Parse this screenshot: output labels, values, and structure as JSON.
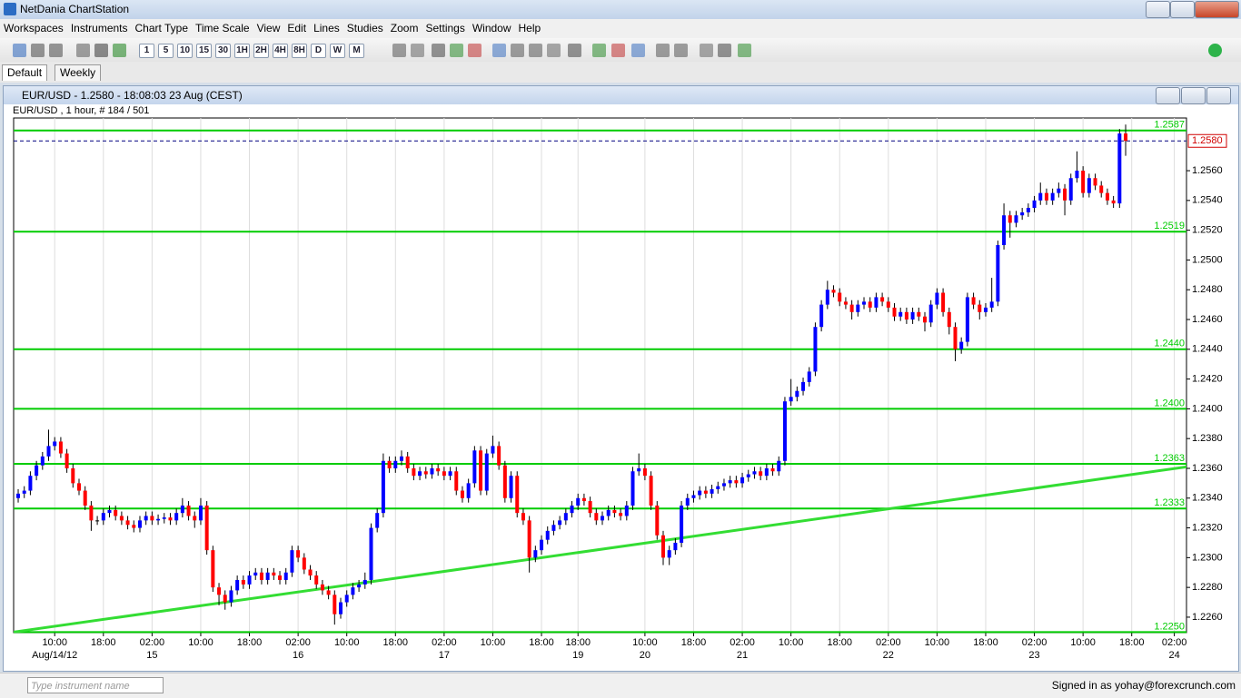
{
  "app": {
    "title": "NetDania ChartStation",
    "menu": [
      "Workspaces",
      "Instruments",
      "Chart Type",
      "Time Scale",
      "View",
      "Edit",
      "Lines",
      "Studies",
      "Zoom",
      "Settings",
      "Window",
      "Help"
    ],
    "periods": [
      "1",
      "5",
      "10",
      "15",
      "30",
      "1H",
      "2H",
      "4H",
      "8H",
      "D",
      "W",
      "M"
    ],
    "tabs": [
      "Default",
      "Weekly"
    ],
    "window_title": "EUR/USD - 1.2580 - 18:08:03  23 Aug (CEST)",
    "search_placeholder": "Type instrument name",
    "status": "Signed in as yohay@forexcrunch.com"
  },
  "chart_data": {
    "type": "candlestick",
    "title": "EUR/USD , 1 hour, # 184 / 501",
    "xlim": [
      -0.75,
      192
    ],
    "ylim": [
      1.22496,
      1.25954
    ],
    "yticks": [
      {
        "value": 1.226,
        "label": "1.2260"
      },
      {
        "value": 1.228,
        "label": "1.2280"
      },
      {
        "value": 1.23,
        "label": "1.2300"
      },
      {
        "value": 1.232,
        "label": "1.2320"
      },
      {
        "value": 1.234,
        "label": "1.2340"
      },
      {
        "value": 1.236,
        "label": "1.2360"
      },
      {
        "value": 1.238,
        "label": "1.2380"
      },
      {
        "value": 1.24,
        "label": "1.2400"
      },
      {
        "value": 1.242,
        "label": "1.2420"
      },
      {
        "value": 1.244,
        "label": "1.2440"
      },
      {
        "value": 1.246,
        "label": "1.2460"
      },
      {
        "value": 1.248,
        "label": "1.2480"
      },
      {
        "value": 1.25,
        "label": "1.2500"
      },
      {
        "value": 1.252,
        "label": "1.2520"
      },
      {
        "value": 1.254,
        "label": "1.2540"
      },
      {
        "value": 1.256,
        "label": "1.2560"
      }
    ],
    "xticks": [
      {
        "value": 6,
        "label": "10:00"
      },
      {
        "value": 14,
        "label": "18:00"
      },
      {
        "value": 22,
        "label": "02:00"
      },
      {
        "value": 30,
        "label": "10:00"
      },
      {
        "value": 38,
        "label": "18:00"
      },
      {
        "value": 46,
        "label": "02:00"
      },
      {
        "value": 54,
        "label": "10:00"
      },
      {
        "value": 62,
        "label": "18:00"
      },
      {
        "value": 70,
        "label": "02:00"
      },
      {
        "value": 78,
        "label": "10:00"
      },
      {
        "value": 86,
        "label": "18:00"
      },
      {
        "value": 92,
        "label": "18:00"
      },
      {
        "value": 103,
        "label": "10:00"
      },
      {
        "value": 111,
        "label": "18:00"
      },
      {
        "value": 119,
        "label": "02:00"
      },
      {
        "value": 127,
        "label": "10:00"
      },
      {
        "value": 135,
        "label": "18:00"
      },
      {
        "value": 143,
        "label": "02:00"
      },
      {
        "value": 151,
        "label": "10:00"
      },
      {
        "value": 159,
        "label": "18:00"
      },
      {
        "value": 167,
        "label": "02:00"
      },
      {
        "value": 175,
        "label": "10:00"
      },
      {
        "value": 183,
        "label": "18:00"
      },
      {
        "value": 190,
        "label": "02:00"
      }
    ],
    "date_ticks": [
      {
        "value": 6,
        "label": "Aug/14/12"
      },
      {
        "value": 22,
        "label": "15"
      },
      {
        "value": 46,
        "label": "16"
      },
      {
        "value": 70,
        "label": "17"
      },
      {
        "value": 92,
        "label": "19"
      },
      {
        "value": 103,
        "label": "20"
      },
      {
        "value": 119,
        "label": "21"
      },
      {
        "value": 143,
        "label": "22"
      },
      {
        "value": 167,
        "label": "23"
      },
      {
        "value": 190,
        "label": "24"
      }
    ],
    "levels": [
      {
        "value": 1.2587,
        "label": "1.2587"
      },
      {
        "value": 1.2519,
        "label": "1.2519"
      },
      {
        "value": 1.244,
        "label": "1.2440"
      },
      {
        "value": 1.24,
        "label": "1.2400"
      },
      {
        "value": 1.2363,
        "label": "1.2363"
      },
      {
        "value": 1.2333,
        "label": "1.2333"
      },
      {
        "value": 1.225,
        "label": "1.2250"
      }
    ],
    "last_price": {
      "value": 1.258,
      "label": "1.2580"
    },
    "trend_line": {
      "x": [
        -0.75,
        192
      ],
      "y": [
        1.225,
        1.2361
      ]
    },
    "up_color": "#0000ff",
    "down_color": "#ff0000",
    "level_color": "#00cc00",
    "candles": [
      [
        1.234,
        1.2346,
        1.2337,
        1.2343
      ],
      [
        1.2343,
        1.2348,
        1.234,
        1.2345
      ],
      [
        1.2345,
        1.2358,
        1.2342,
        1.2355
      ],
      [
        1.2355,
        1.2365,
        1.2352,
        1.2362
      ],
      [
        1.2362,
        1.2371,
        1.2359,
        1.2368
      ],
      [
        1.2368,
        1.2386,
        1.2365,
        1.2375
      ],
      [
        1.2375,
        1.2381,
        1.2372,
        1.2378
      ],
      [
        1.2378,
        1.2381,
        1.2367,
        1.237
      ],
      [
        1.237,
        1.2373,
        1.2357,
        1.236
      ],
      [
        1.236,
        1.2363,
        1.2347,
        1.235
      ],
      [
        1.235,
        1.2353,
        1.2342,
        1.2345
      ],
      [
        1.2345,
        1.2348,
        1.2332,
        1.2335
      ],
      [
        1.2335,
        1.2338,
        1.2318,
        1.2325
      ],
      [
        1.2325,
        1.2328,
        1.2322,
        1.2325
      ],
      [
        1.2325,
        1.2333,
        1.2322,
        1.233
      ],
      [
        1.233,
        1.2335,
        1.2327,
        1.2332
      ],
      [
        1.2332,
        1.2335,
        1.2325,
        1.2328
      ],
      [
        1.2328,
        1.2331,
        1.2322,
        1.2325
      ],
      [
        1.2325,
        1.2328,
        1.2319,
        1.2322
      ],
      [
        1.2322,
        1.2325,
        1.2317,
        1.232
      ],
      [
        1.232,
        1.2328,
        1.2317,
        1.2325
      ],
      [
        1.2325,
        1.2331,
        1.2322,
        1.2328
      ],
      [
        1.2328,
        1.2331,
        1.2322,
        1.2325
      ],
      [
        1.2325,
        1.2329,
        1.2322,
        1.2326
      ],
      [
        1.2326,
        1.233,
        1.2323,
        1.2327
      ],
      [
        1.2327,
        1.233,
        1.2322,
        1.2325
      ],
      [
        1.2325,
        1.2333,
        1.2322,
        1.233
      ],
      [
        1.233,
        1.234,
        1.2327,
        1.2335
      ],
      [
        1.2335,
        1.2338,
        1.2325,
        1.2328
      ],
      [
        1.2328,
        1.2331,
        1.232,
        1.2325
      ],
      [
        1.2325,
        1.234,
        1.2322,
        1.2335
      ],
      [
        1.2335,
        1.2338,
        1.2302,
        1.2305
      ],
      [
        1.2305,
        1.2308,
        1.2277,
        1.228
      ],
      [
        1.228,
        1.2283,
        1.2268,
        1.2275
      ],
      [
        1.2275,
        1.2278,
        1.2265,
        1.227
      ],
      [
        1.227,
        1.2281,
        1.2267,
        1.2278
      ],
      [
        1.2278,
        1.2288,
        1.2275,
        1.2285
      ],
      [
        1.2285,
        1.2288,
        1.2279,
        1.2282
      ],
      [
        1.2282,
        1.2291,
        1.2279,
        1.2288
      ],
      [
        1.2288,
        1.2293,
        1.2285,
        1.229
      ],
      [
        1.229,
        1.2293,
        1.2282,
        1.2285
      ],
      [
        1.2285,
        1.2293,
        1.2282,
        1.229
      ],
      [
        1.229,
        1.2293,
        1.2285,
        1.2288
      ],
      [
        1.2288,
        1.2291,
        1.2282,
        1.2285
      ],
      [
        1.2285,
        1.2293,
        1.2282,
        1.229
      ],
      [
        1.229,
        1.2308,
        1.2287,
        1.2305
      ],
      [
        1.2305,
        1.2308,
        1.2297,
        1.23
      ],
      [
        1.23,
        1.2303,
        1.2289,
        1.2292
      ],
      [
        1.2292,
        1.2295,
        1.2285,
        1.2288
      ],
      [
        1.2288,
        1.2291,
        1.2279,
        1.2282
      ],
      [
        1.2282,
        1.2285,
        1.2275,
        1.2278
      ],
      [
        1.2278,
        1.2281,
        1.2272,
        1.2275
      ],
      [
        1.2275,
        1.2278,
        1.2255,
        1.2262
      ],
      [
        1.2262,
        1.2273,
        1.2259,
        1.227
      ],
      [
        1.227,
        1.2278,
        1.2267,
        1.2275
      ],
      [
        1.2275,
        1.2283,
        1.2272,
        1.228
      ],
      [
        1.228,
        1.2285,
        1.2277,
        1.2282
      ],
      [
        1.2282,
        1.229,
        1.2279,
        1.2285
      ],
      [
        1.2285,
        1.2323,
        1.2282,
        1.232
      ],
      [
        1.232,
        1.2333,
        1.2317,
        1.233
      ],
      [
        1.233,
        1.237,
        1.2327,
        1.2365
      ],
      [
        1.2365,
        1.2368,
        1.2357,
        1.236
      ],
      [
        1.236,
        1.2368,
        1.2357,
        1.2365
      ],
      [
        1.2365,
        1.2372,
        1.2362,
        1.2368
      ],
      [
        1.2368,
        1.2371,
        1.2357,
        1.236
      ],
      [
        1.236,
        1.2363,
        1.2352,
        1.2355
      ],
      [
        1.2355,
        1.2361,
        1.2352,
        1.2358
      ],
      [
        1.2358,
        1.2361,
        1.2353,
        1.2356
      ],
      [
        1.2356,
        1.2363,
        1.2353,
        1.236
      ],
      [
        1.236,
        1.2363,
        1.2355,
        1.2358
      ],
      [
        1.2358,
        1.2361,
        1.2352,
        1.2355
      ],
      [
        1.2355,
        1.2361,
        1.2352,
        1.2358
      ],
      [
        1.2358,
        1.2361,
        1.2342,
        1.2345
      ],
      [
        1.2345,
        1.2348,
        1.2337,
        1.234
      ],
      [
        1.234,
        1.2353,
        1.2337,
        1.235
      ],
      [
        1.235,
        1.2375,
        1.2347,
        1.2372
      ],
      [
        1.2372,
        1.2375,
        1.2342,
        1.2345
      ],
      [
        1.2345,
        1.2373,
        1.2342,
        1.237
      ],
      [
        1.237,
        1.2382,
        1.2367,
        1.2375
      ],
      [
        1.2375,
        1.2378,
        1.2359,
        1.2362
      ],
      [
        1.2362,
        1.2365,
        1.2337,
        1.234
      ],
      [
        1.234,
        1.2358,
        1.2337,
        1.2355
      ],
      [
        1.2355,
        1.2358,
        1.2327,
        1.233
      ],
      [
        1.233,
        1.2333,
        1.2322,
        1.2325
      ],
      [
        1.2325,
        1.2328,
        1.229,
        1.23
      ],
      [
        1.23,
        1.2308,
        1.2297,
        1.2305
      ],
      [
        1.2305,
        1.2315,
        1.2302,
        1.2312
      ],
      [
        1.2312,
        1.2321,
        1.2309,
        1.2318
      ],
      [
        1.2318,
        1.2325,
        1.2315,
        1.2322
      ],
      [
        1.2322,
        1.2328,
        1.2319,
        1.2325
      ],
      [
        1.2325,
        1.2333,
        1.2322,
        1.233
      ],
      [
        1.233,
        1.2338,
        1.2327,
        1.2335
      ],
      [
        1.2335,
        1.2343,
        1.2332,
        1.234
      ],
      [
        1.234,
        1.2343,
        1.2335,
        1.2338
      ],
      [
        1.2338,
        1.2341,
        1.2327,
        1.233
      ],
      [
        1.233,
        1.2333,
        1.2322,
        1.2325
      ],
      [
        1.2325,
        1.2331,
        1.2322,
        1.2328
      ],
      [
        1.2328,
        1.2335,
        1.2325,
        1.2332
      ],
      [
        1.2332,
        1.2335,
        1.2327,
        1.233
      ],
      [
        1.233,
        1.2333,
        1.2325,
        1.2328
      ],
      [
        1.2328,
        1.2338,
        1.2325,
        1.2335
      ],
      [
        1.2335,
        1.2361,
        1.2332,
        1.2358
      ],
      [
        1.2358,
        1.237,
        1.2355,
        1.236
      ],
      [
        1.236,
        1.2363,
        1.2352,
        1.2355
      ],
      [
        1.2355,
        1.2358,
        1.2332,
        1.2335
      ],
      [
        1.2335,
        1.2338,
        1.2312,
        1.2315
      ],
      [
        1.2315,
        1.2318,
        1.2295,
        1.23
      ],
      [
        1.23,
        1.2308,
        1.2295,
        1.2305
      ],
      [
        1.2305,
        1.2313,
        1.2302,
        1.231
      ],
      [
        1.231,
        1.2338,
        1.2307,
        1.2335
      ],
      [
        1.2335,
        1.2343,
        1.2332,
        1.234
      ],
      [
        1.234,
        1.2345,
        1.2337,
        1.2342
      ],
      [
        1.2342,
        1.2348,
        1.2339,
        1.2345
      ],
      [
        1.2345,
        1.2348,
        1.234,
        1.2343
      ],
      [
        1.2343,
        1.2349,
        1.234,
        1.2346
      ],
      [
        1.2346,
        1.2351,
        1.2343,
        1.2348
      ],
      [
        1.2348,
        1.2353,
        1.2345,
        1.235
      ],
      [
        1.235,
        1.2355,
        1.2347,
        1.2352
      ],
      [
        1.2352,
        1.2355,
        1.2347,
        1.235
      ],
      [
        1.235,
        1.2357,
        1.2347,
        1.2354
      ],
      [
        1.2354,
        1.2359,
        1.2351,
        1.2356
      ],
      [
        1.2356,
        1.2361,
        1.2353,
        1.2358
      ],
      [
        1.2358,
        1.2361,
        1.2352,
        1.2355
      ],
      [
        1.2355,
        1.2363,
        1.2352,
        1.236
      ],
      [
        1.236,
        1.2363,
        1.2355,
        1.2358
      ],
      [
        1.2358,
        1.2368,
        1.2355,
        1.2365
      ],
      [
        1.2365,
        1.2408,
        1.2362,
        1.2405
      ],
      [
        1.2405,
        1.242,
        1.2402,
        1.2408
      ],
      [
        1.2408,
        1.2415,
        1.2405,
        1.2412
      ],
      [
        1.2412,
        1.2421,
        1.2409,
        1.2418
      ],
      [
        1.2418,
        1.2428,
        1.2415,
        1.2425
      ],
      [
        1.2425,
        1.2458,
        1.2422,
        1.2455
      ],
      [
        1.2455,
        1.2473,
        1.2452,
        1.247
      ],
      [
        1.247,
        1.2486,
        1.2467,
        1.248
      ],
      [
        1.248,
        1.2483,
        1.2475,
        1.2478
      ],
      [
        1.2478,
        1.2481,
        1.2469,
        1.2472
      ],
      [
        1.2472,
        1.2475,
        1.2467,
        1.247
      ],
      [
        1.247,
        1.2473,
        1.246,
        1.2465
      ],
      [
        1.2465,
        1.2473,
        1.2462,
        1.247
      ],
      [
        1.247,
        1.2475,
        1.2467,
        1.2472
      ],
      [
        1.2472,
        1.2475,
        1.2465,
        1.2468
      ],
      [
        1.2468,
        1.2478,
        1.2465,
        1.2475
      ],
      [
        1.2475,
        1.2478,
        1.2469,
        1.2472
      ],
      [
        1.2472,
        1.2475,
        1.2465,
        1.2468
      ],
      [
        1.2468,
        1.2471,
        1.2459,
        1.2462
      ],
      [
        1.2462,
        1.2468,
        1.2459,
        1.2465
      ],
      [
        1.2465,
        1.2468,
        1.2457,
        1.246
      ],
      [
        1.246,
        1.2468,
        1.2457,
        1.2465
      ],
      [
        1.2465,
        1.2468,
        1.2459,
        1.2462
      ],
      [
        1.2462,
        1.2465,
        1.2452,
        1.2458
      ],
      [
        1.2458,
        1.2473,
        1.2455,
        1.247
      ],
      [
        1.247,
        1.2481,
        1.2467,
        1.2478
      ],
      [
        1.2478,
        1.2481,
        1.2462,
        1.2465
      ],
      [
        1.2465,
        1.2468,
        1.245,
        1.2455
      ],
      [
        1.2455,
        1.2458,
        1.2432,
        1.244
      ],
      [
        1.244,
        1.2448,
        1.2437,
        1.2445
      ],
      [
        1.2445,
        1.2478,
        1.2442,
        1.2475
      ],
      [
        1.2475,
        1.2478,
        1.2467,
        1.247
      ],
      [
        1.247,
        1.2473,
        1.246,
        1.2465
      ],
      [
        1.2465,
        1.2471,
        1.2462,
        1.2468
      ],
      [
        1.2468,
        1.2488,
        1.2465,
        1.2472
      ],
      [
        1.2472,
        1.2513,
        1.2469,
        1.251
      ],
      [
        1.251,
        1.2538,
        1.2507,
        1.253
      ],
      [
        1.253,
        1.2533,
        1.2515,
        1.2525
      ],
      [
        1.2525,
        1.2533,
        1.2522,
        1.253
      ],
      [
        1.253,
        1.2535,
        1.2527,
        1.2532
      ],
      [
        1.2532,
        1.2538,
        1.2529,
        1.2535
      ],
      [
        1.2535,
        1.2543,
        1.2532,
        1.254
      ],
      [
        1.254,
        1.2552,
        1.2537,
        1.2545
      ],
      [
        1.2545,
        1.2548,
        1.2537,
        1.254
      ],
      [
        1.254,
        1.2548,
        1.2537,
        1.2545
      ],
      [
        1.2545,
        1.2552,
        1.2542,
        1.2548
      ],
      [
        1.2548,
        1.2551,
        1.253,
        1.254
      ],
      [
        1.254,
        1.2558,
        1.2537,
        1.2555
      ],
      [
        1.2555,
        1.2573,
        1.2552,
        1.256
      ],
      [
        1.256,
        1.2563,
        1.2542,
        1.2545
      ],
      [
        1.2545,
        1.2558,
        1.2542,
        1.2555
      ],
      [
        1.2555,
        1.2558,
        1.2547,
        1.255
      ],
      [
        1.255,
        1.2553,
        1.2542,
        1.2545
      ],
      [
        1.2545,
        1.2548,
        1.2537,
        1.254
      ],
      [
        1.254,
        1.2543,
        1.2535,
        1.2538
      ],
      [
        1.2538,
        1.2588,
        1.2535,
        1.2585
      ],
      [
        1.2585,
        1.2591,
        1.257,
        1.258
      ]
    ]
  }
}
